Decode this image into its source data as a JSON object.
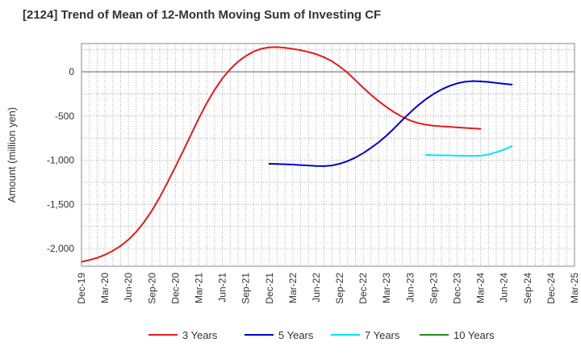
{
  "chart_data": {
    "type": "line",
    "title": "[2124]  Trend of Mean of 12-Month Moving Sum of Investing CF",
    "xlabel": "",
    "ylabel": "Amount (million yen)",
    "ylim": [
      -2200,
      320
    ],
    "yticks": [
      0,
      -500,
      -1000,
      -1500,
      -2000
    ],
    "ytick_labels": [
      "0",
      "-500",
      "-1,000",
      "-1,500",
      "-2,000"
    ],
    "xticks": [
      "Dec-19",
      "Mar-20",
      "Jun-20",
      "Sep-20",
      "Dec-20",
      "Mar-21",
      "Jun-21",
      "Sep-21",
      "Dec-21",
      "Mar-22",
      "Jun-22",
      "Sep-22",
      "Dec-22",
      "Mar-23",
      "Jun-23",
      "Sep-23",
      "Dec-23",
      "Mar-24",
      "Jun-24",
      "Sep-24",
      "Dec-24",
      "Mar-25"
    ],
    "grid": true,
    "legend_position": "bottom",
    "series": [
      {
        "name": "3 Years",
        "color": "#e41a1c",
        "start_index": 0,
        "values": [
          -2150,
          -2130,
          -2105,
          -2070,
          -2025,
          -1970,
          -1900,
          -1810,
          -1700,
          -1570,
          -1420,
          -1250,
          -1075,
          -895,
          -710,
          -525,
          -355,
          -205,
          -75,
          30,
          115,
          180,
          230,
          262,
          278,
          280,
          272,
          260,
          245,
          225,
          200,
          165,
          120,
          60,
          -10,
          -95,
          -180,
          -260,
          -335,
          -400,
          -460,
          -510,
          -550,
          -580,
          -598,
          -610,
          -617,
          -622,
          -628,
          -634,
          -640,
          -645
        ]
      },
      {
        "name": "5 Years",
        "color": "#0000cc",
        "start_index": 24,
        "values": [
          -1040,
          -1043,
          -1046,
          -1050,
          -1055,
          -1060,
          -1065,
          -1067,
          -1060,
          -1040,
          -1010,
          -970,
          -920,
          -860,
          -795,
          -720,
          -635,
          -545,
          -460,
          -380,
          -310,
          -250,
          -200,
          -160,
          -130,
          -112,
          -105,
          -108,
          -115,
          -125,
          -135,
          -145
        ]
      },
      {
        "name": "7 Years",
        "color": "#00e5ee",
        "start_index": 44,
        "values": [
          -940,
          -943,
          -945,
          -946,
          -948,
          -950,
          -951,
          -949,
          -935,
          -910,
          -880,
          -840
        ]
      },
      {
        "name": "10 Years",
        "color": "#228b22",
        "start_index": 0,
        "values": []
      }
    ]
  }
}
